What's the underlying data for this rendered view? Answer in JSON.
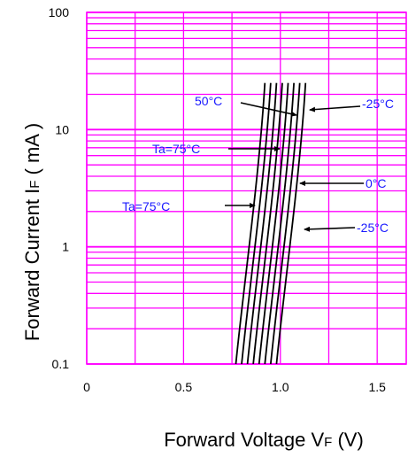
{
  "chart_data": {
    "type": "line",
    "title": "",
    "xlabel": "Forward Voltage V",
    "xlabel_sub": "F",
    "xlabel_unit": " (V)",
    "ylabel": "Forward Current I",
    "ylabel_sub": "F",
    "ylabel_unit": " ( mA )",
    "x_axis": {
      "range": [
        0,
        1.65
      ],
      "ticks": [
        0,
        0.5,
        1.0,
        1.5
      ],
      "tick_labels": [
        "0",
        "0.5",
        "1.0",
        "1.5"
      ]
    },
    "y_axis": {
      "scale": "log",
      "range": [
        0.1,
        100
      ],
      "ticks": [
        0.1,
        1,
        10,
        100
      ],
      "tick_labels": [
        "0.1",
        "1",
        "10",
        "100"
      ]
    },
    "grid": true,
    "colors": {
      "grid": "#ff00ff",
      "curve": "#000000",
      "annotation": "#1a1aff"
    },
    "curve_bundle": {
      "count": 8,
      "x_at_min_current": [
        0.77,
        0.8,
        0.83,
        0.86,
        0.89,
        0.92,
        0.95,
        0.98
      ],
      "x_spread_at_max_current": 0.15,
      "bend": 0.06,
      "y_range": [
        0.1,
        25
      ]
    },
    "annotations": [
      {
        "text": "50°C",
        "x": 1.1,
        "y": 13
      },
      {
        "text": "-25°C",
        "x": 1.24,
        "y": 13
      },
      {
        "text": "Ta=75°C",
        "x": 1.0,
        "y": 6.5
      },
      {
        "text": "0°C",
        "x": 1.18,
        "y": 3.3
      },
      {
        "text": "Ta=75°C",
        "x": 0.87,
        "y": 2.05
      },
      {
        "text": "-25°C",
        "x": 1.16,
        "y": 1.35
      }
    ]
  }
}
